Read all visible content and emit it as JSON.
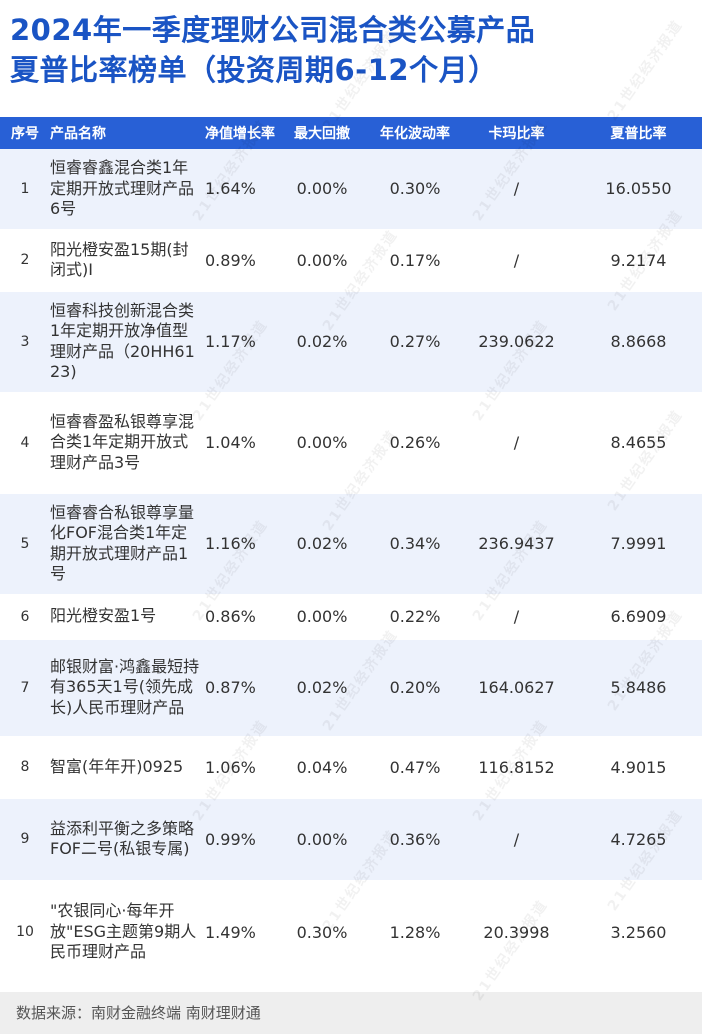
{
  "title": {
    "line1": "2024年一季度理财公司混合类公募产品",
    "line2": "夏普比率榜单（投资周期6-12个月）"
  },
  "table": {
    "headers": [
      "序号",
      "产品名称",
      "净值增长率",
      "最大回撤",
      "年化波动率",
      "卡玛比率",
      "夏普比率"
    ],
    "rows": [
      {
        "idx": "1",
        "name": "恒睿睿鑫混合类1年定期开放式理财产品6号",
        "growth": "1.64%",
        "drawdown": "0.00%",
        "volatility": "0.30%",
        "calmar": "/",
        "sharpe": "16.0550"
      },
      {
        "idx": "2",
        "name": "阳光橙安盈15期(封闭式)I",
        "growth": "0.89%",
        "drawdown": "0.00%",
        "volatility": "0.17%",
        "calmar": "/",
        "sharpe": "9.2174"
      },
      {
        "idx": "3",
        "name": "恒睿科技创新混合类1年定期开放净值型理财产品（20HH6123)",
        "growth": "1.17%",
        "drawdown": "0.02%",
        "volatility": "0.27%",
        "calmar": "239.0622",
        "sharpe": "8.8668"
      },
      {
        "idx": "4",
        "name": "恒睿睿盈私银尊享混合类1年定期开放式理财产品3号",
        "growth": "1.04%",
        "drawdown": "0.00%",
        "volatility": "0.26%",
        "calmar": "/",
        "sharpe": "8.4655"
      },
      {
        "idx": "5",
        "name": "恒睿睿合私银尊享量化FOF混合类1年定期开放式理财产品1号",
        "growth": "1.16%",
        "drawdown": "0.02%",
        "volatility": "0.34%",
        "calmar": "236.9437",
        "sharpe": "7.9991"
      },
      {
        "idx": "6",
        "name": "阳光橙安盈1号",
        "growth": "0.86%",
        "drawdown": "0.00%",
        "volatility": "0.22%",
        "calmar": "/",
        "sharpe": "6.6909"
      },
      {
        "idx": "7",
        "name": "邮银财富·鸿鑫最短持有365天1号(领先成长)人民币理财产品",
        "growth": "0.87%",
        "drawdown": "0.02%",
        "volatility": "0.20%",
        "calmar": "164.0627",
        "sharpe": "5.8486"
      },
      {
        "idx": "8",
        "name": "智富(年年开)0925",
        "growth": "1.06%",
        "drawdown": "0.04%",
        "volatility": "0.47%",
        "calmar": "116.8152",
        "sharpe": "4.9015"
      },
      {
        "idx": "9",
        "name": "益添利平衡之多策略FOF二号(私银专属)",
        "growth": "0.99%",
        "drawdown": "0.00%",
        "volatility": "0.36%",
        "calmar": "/",
        "sharpe": "4.7265"
      },
      {
        "idx": "10",
        "name": "\"农银同心·每年开放\"ESG主题第9期人民币理财产品",
        "growth": "1.49%",
        "drawdown": "0.30%",
        "volatility": "1.28%",
        "calmar": "20.3998",
        "sharpe": "3.2560"
      }
    ]
  },
  "footer": {
    "source": "数据来源：南财金融终端 南财理财通"
  },
  "watermark": "21世纪经济报道",
  "colors": {
    "title": "#1a54c4",
    "header_bg": "#2860d6",
    "odd_row_bg": "#edf2fc",
    "footer_bg": "#eeeeee"
  }
}
